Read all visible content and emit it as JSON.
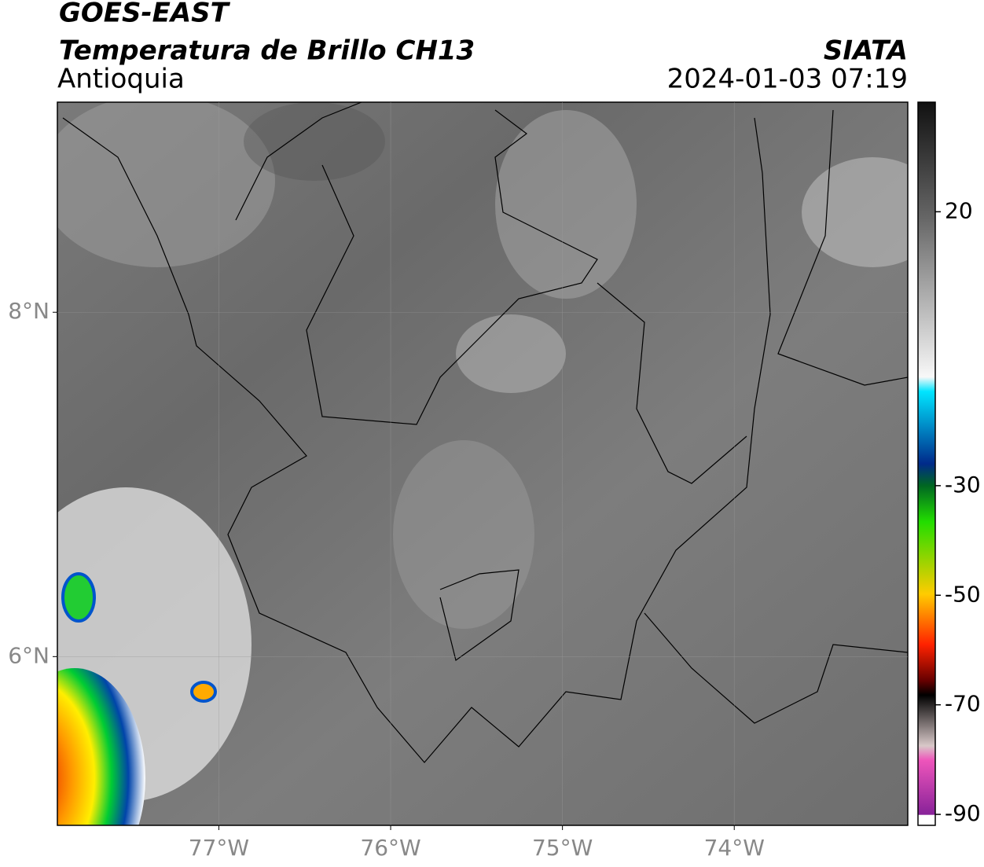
{
  "header": {
    "satellite": "GOES-EAST",
    "product": "Temperatura de Brillo CH13",
    "region": "Antioquia",
    "source": "SIATA",
    "datetime": "2024-01-03 07:19"
  },
  "map": {
    "xlim": [
      -77.94,
      -72.99
    ],
    "ylim": [
      5.02,
      9.22
    ],
    "xticks": [
      {
        "value": -77,
        "label": "77°W"
      },
      {
        "value": -76,
        "label": "76°W"
      },
      {
        "value": -75,
        "label": "75°W"
      },
      {
        "value": -74,
        "label": "74°W"
      }
    ],
    "yticks": [
      {
        "value": 8,
        "label": "8°N"
      },
      {
        "value": 6,
        "label": "6°N"
      }
    ],
    "grid": true
  },
  "colorbar": {
    "lim": [
      -92,
      40
    ],
    "ticks": [
      20,
      -30,
      -50,
      -70,
      -90
    ]
  }
}
